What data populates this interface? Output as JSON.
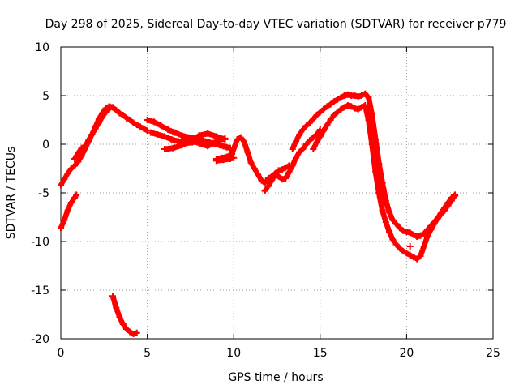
{
  "chart_data": {
    "type": "scatter",
    "title": "Day 298 of 2025, Sidereal Day-to-day VTEC variation (SDTVAR) for receiver p779",
    "xlabel": "GPS time / hours",
    "ylabel": "SDTVAR / TECUs",
    "xlim": [
      0,
      25
    ],
    "ylim": [
      -20,
      10
    ],
    "xticks": [
      0,
      5,
      10,
      15,
      20,
      25
    ],
    "yticks": [
      10,
      5,
      0,
      -5,
      -10,
      -15,
      -20
    ],
    "grid": true,
    "marker": "+",
    "series": [
      {
        "name": "SDTVAR",
        "color": "#ff0000",
        "segments": [
          {
            "x": [
              0.0,
              0.2,
              0.4,
              0.6,
              0.8,
              0.9
            ],
            "y": [
              -8.6,
              -7.8,
              -6.8,
              -6.0,
              -5.5,
              -5.2
            ]
          },
          {
            "x": [
              3.0,
              3.2,
              3.4,
              3.6,
              3.8,
              4.0,
              4.2,
              4.4
            ],
            "y": [
              -15.6,
              -16.8,
              -17.8,
              -18.5,
              -19.0,
              -19.3,
              -19.5,
              -19.4
            ]
          },
          {
            "x": [
              0.0,
              0.2,
              0.4,
              0.6,
              0.8,
              1.0,
              1.2,
              1.4,
              1.6,
              1.8,
              2.0,
              2.2,
              2.4,
              2.6,
              2.8,
              3.0,
              3.2,
              3.4,
              3.6,
              3.8,
              4.0,
              4.2,
              4.4,
              4.6,
              4.8,
              5.0
            ],
            "y": [
              -4.2,
              -3.6,
              -3.0,
              -2.5,
              -2.2,
              -1.8,
              -1.2,
              -0.5,
              0.3,
              1.0,
              1.8,
              2.6,
              3.2,
              3.7,
              3.9,
              3.8,
              3.5,
              3.2,
              3.0,
              2.7,
              2.5,
              2.2,
              2.0,
              1.8,
              1.6,
              1.4
            ]
          },
          {
            "x": [
              0.8,
              1.0,
              1.2,
              1.4,
              1.6,
              1.8,
              2.0,
              2.2,
              2.4,
              2.6,
              2.8
            ],
            "y": [
              -1.5,
              -0.9,
              -0.4,
              -0.2,
              0.4,
              1.0,
              1.6,
              2.2,
              2.8,
              3.3,
              3.6
            ]
          },
          {
            "x": [
              5.0,
              5.4,
              5.8,
              6.2,
              6.6,
              7.0,
              7.4,
              7.8,
              8.2,
              8.6,
              9.0,
              9.4,
              9.8
            ],
            "y": [
              2.5,
              2.3,
              1.9,
              1.5,
              1.2,
              0.9,
              0.7,
              0.6,
              0.4,
              0.2,
              0.0,
              -0.2,
              -0.4
            ]
          },
          {
            "x": [
              5.2,
              5.6,
              6.0,
              6.4,
              6.8,
              7.2,
              7.6,
              8.0,
              8.4,
              8.8,
              9.2,
              9.6
            ],
            "y": [
              1.2,
              1.0,
              0.8,
              0.5,
              0.3,
              0.1,
              0.2,
              0.3,
              0.2,
              0.1,
              -0.1,
              -0.3
            ]
          },
          {
            "x": [
              6.0,
              6.5,
              7.0,
              7.5,
              8.0,
              8.5,
              9.0,
              9.5
            ],
            "y": [
              -0.5,
              -0.4,
              -0.1,
              0.3,
              0.9,
              1.1,
              0.8,
              0.5
            ]
          },
          {
            "x": [
              9.0,
              9.3,
              9.6,
              9.9,
              10.2,
              10.4,
              10.6,
              10.8,
              11.0,
              11.2,
              11.4,
              11.6,
              11.8,
              12.0,
              12.2,
              12.4,
              12.6,
              12.8,
              13.0,
              13.2
            ],
            "y": [
              -1.5,
              -1.4,
              -1.3,
              -1.0,
              0.5,
              0.7,
              0.3,
              -0.8,
              -1.9,
              -2.5,
              -3.1,
              -3.7,
              -4.0,
              -3.5,
              -3.3,
              -3.0,
              -2.7,
              -2.6,
              -2.4,
              -2.2
            ]
          },
          {
            "x": [
              11.8,
              12.0,
              12.2,
              12.4,
              12.6,
              12.8,
              13.0,
              13.2,
              13.4,
              13.6,
              13.8,
              14.0,
              14.2,
              14.4,
              14.6,
              14.8,
              15.0
            ],
            "y": [
              -4.8,
              -4.3,
              -3.7,
              -3.2,
              -3.3,
              -3.6,
              -3.5,
              -2.9,
              -2.2,
              -1.4,
              -0.8,
              -0.5,
              0.0,
              0.4,
              0.7,
              1.0,
              1.5
            ]
          },
          {
            "x": [
              13.4,
              13.6,
              13.8,
              14.0,
              14.2,
              14.4,
              14.6,
              14.8,
              15.0,
              15.2,
              15.4,
              15.6,
              15.8,
              16.0,
              16.2,
              16.4,
              16.6,
              16.8,
              17.0,
              17.2,
              17.4,
              17.6,
              17.8,
              18.0,
              18.2,
              18.4,
              18.6,
              18.8,
              19.0,
              19.2,
              19.4,
              19.6,
              19.8,
              20.0,
              20.2,
              20.4,
              20.6,
              20.8,
              21.0,
              21.2,
              21.4,
              21.6,
              21.8,
              22.0,
              22.2,
              22.4,
              22.6,
              22.8
            ],
            "y": [
              -0.5,
              0.3,
              1.0,
              1.5,
              1.9,
              2.2,
              2.6,
              3.0,
              3.3,
              3.6,
              3.9,
              4.1,
              4.4,
              4.6,
              4.8,
              5.0,
              5.1,
              5.0,
              5.0,
              4.9,
              5.0,
              5.2,
              4.8,
              3.0,
              0.5,
              -2.0,
              -4.0,
              -5.8,
              -7.0,
              -7.8,
              -8.2,
              -8.6,
              -8.9,
              -9.0,
              -9.1,
              -9.3,
              -9.5,
              -9.4,
              -9.2,
              -8.8,
              -8.4,
              -8.0,
              -7.6,
              -7.2,
              -6.8,
              -6.3,
              -5.8,
              -5.3
            ]
          },
          {
            "x": [
              14.6,
              14.8,
              15.0,
              15.2,
              15.4,
              15.6,
              15.8,
              16.0,
              16.2,
              16.4,
              16.6,
              16.8,
              17.0,
              17.2,
              17.4,
              17.6,
              17.8,
              18.0,
              18.2,
              18.4,
              18.6,
              18.8,
              19.0,
              19.2,
              19.4,
              19.6,
              19.8,
              20.0,
              20.2,
              20.4,
              20.6,
              20.8,
              21.0,
              21.2,
              21.4,
              21.6,
              21.8,
              22.0,
              22.2,
              22.4,
              22.6,
              22.8
            ],
            "y": [
              -0.5,
              0.2,
              0.8,
              1.4,
              2.0,
              2.5,
              3.0,
              3.3,
              3.6,
              3.8,
              4.0,
              3.9,
              3.7,
              3.6,
              3.8,
              4.0,
              2.5,
              0.0,
              -2.8,
              -5.0,
              -6.8,
              -8.0,
              -9.0,
              -9.8,
              -10.3,
              -10.7,
              -11.0,
              -11.2,
              -11.4,
              -11.6,
              -11.8,
              -11.5,
              -10.5,
              -9.5,
              -8.8,
              -8.2,
              -7.6,
              -7.0,
              -6.5,
              -6.0,
              -5.5,
              -5.2
            ]
          },
          {
            "x": [
              7.0,
              7.5,
              8.0,
              8.5,
              9.0,
              9.5
            ],
            "y": [
              0.5,
              0.4,
              0.1,
              -0.2,
              0.3,
              0.6
            ]
          },
          {
            "x": [
              9.0,
              9.4,
              9.8,
              10.0
            ],
            "y": [
              -1.7,
              -1.6,
              -1.5,
              -1.4
            ]
          },
          {
            "x": [
              20.2
            ],
            "y": [
              -10.5
            ]
          }
        ]
      }
    ]
  }
}
